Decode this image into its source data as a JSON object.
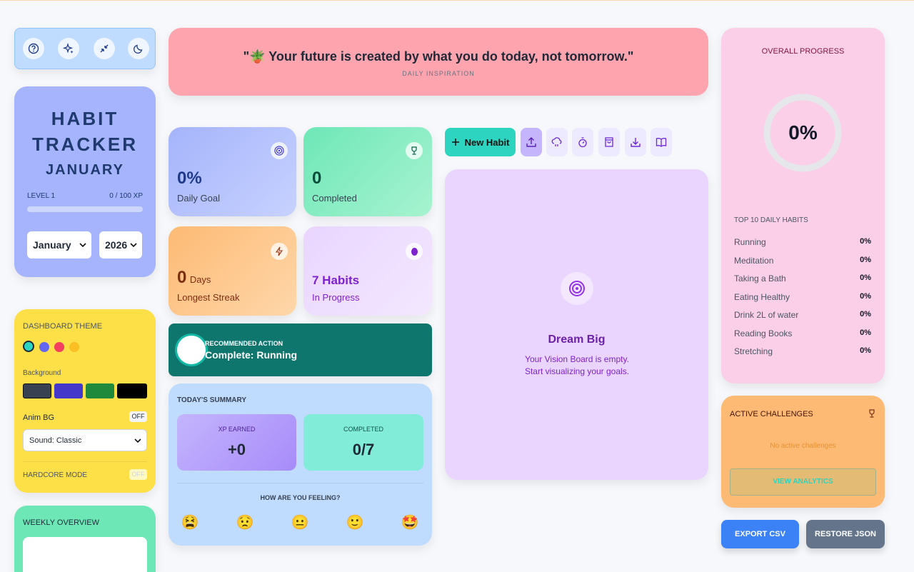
{
  "sidebar": {
    "title_lines": [
      "HABIT",
      "TRACKER"
    ],
    "month": "JANUARY",
    "level": "LEVEL 1",
    "xp": "0 / 100 XP",
    "month_select": "January",
    "year_select": "2026"
  },
  "theme": {
    "title": "DASHBOARD THEME",
    "background_label": "Background",
    "anim_label": "Anim BG",
    "anim_state": "OFF",
    "sound": "Sound: Classic",
    "hardcore_label": "HARDCORE MODE",
    "hardcore_state": "OFF"
  },
  "weekly": {
    "title": "WEEKLY OVERVIEW"
  },
  "quote": {
    "text": "\"🪴 Your future is created by what you do today, not tomorrow.\"",
    "label": "DAILY INSPIRATION"
  },
  "stats": [
    {
      "value": "0%",
      "label": "Daily Goal"
    },
    {
      "value": "0",
      "label": "Completed"
    },
    {
      "value": "0",
      "unit": "Days",
      "label": "Longest Streak"
    },
    {
      "value": "7 Habits",
      "label": "In Progress"
    }
  ],
  "recommended": {
    "label": "RECOMMENDED ACTION",
    "action": "Complete: Running"
  },
  "summary": {
    "title": "TODAY'S SUMMARY",
    "xp_label": "XP EARNED",
    "xp": "+0",
    "completed_label": "COMPLETED",
    "completed": "0/7",
    "feeling_prompt": "HOW ARE YOU FEELING?",
    "moods": [
      "😫",
      "😟",
      "😐",
      "🙂",
      "🤩"
    ]
  },
  "actions": {
    "new_habit": "New Habit"
  },
  "vision": {
    "title": "Dream Big",
    "text": "Your Vision Board is empty. Start visualizing your goals."
  },
  "progress": {
    "title": "OVERALL PROGRESS",
    "percent": "0%",
    "list_title": "TOP 10 DAILY HABITS",
    "habits": [
      {
        "name": "Running",
        "percent": "0%"
      },
      {
        "name": "Meditation",
        "percent": "0%"
      },
      {
        "name": "Taking a Bath",
        "percent": "0%"
      },
      {
        "name": "Eating Healthy",
        "percent": "0%"
      },
      {
        "name": "Drink 2L of water",
        "percent": "0%"
      },
      {
        "name": "Reading Books",
        "percent": "0%"
      },
      {
        "name": "Stretching",
        "percent": "0%"
      }
    ]
  },
  "challenges": {
    "title": "ACTIVE CHALLENGES",
    "empty": "No active challenges",
    "button": "VIEW ANALYTICS"
  },
  "export": {
    "csv": "EXPORT CSV",
    "restore": "RESTORE JSON"
  }
}
